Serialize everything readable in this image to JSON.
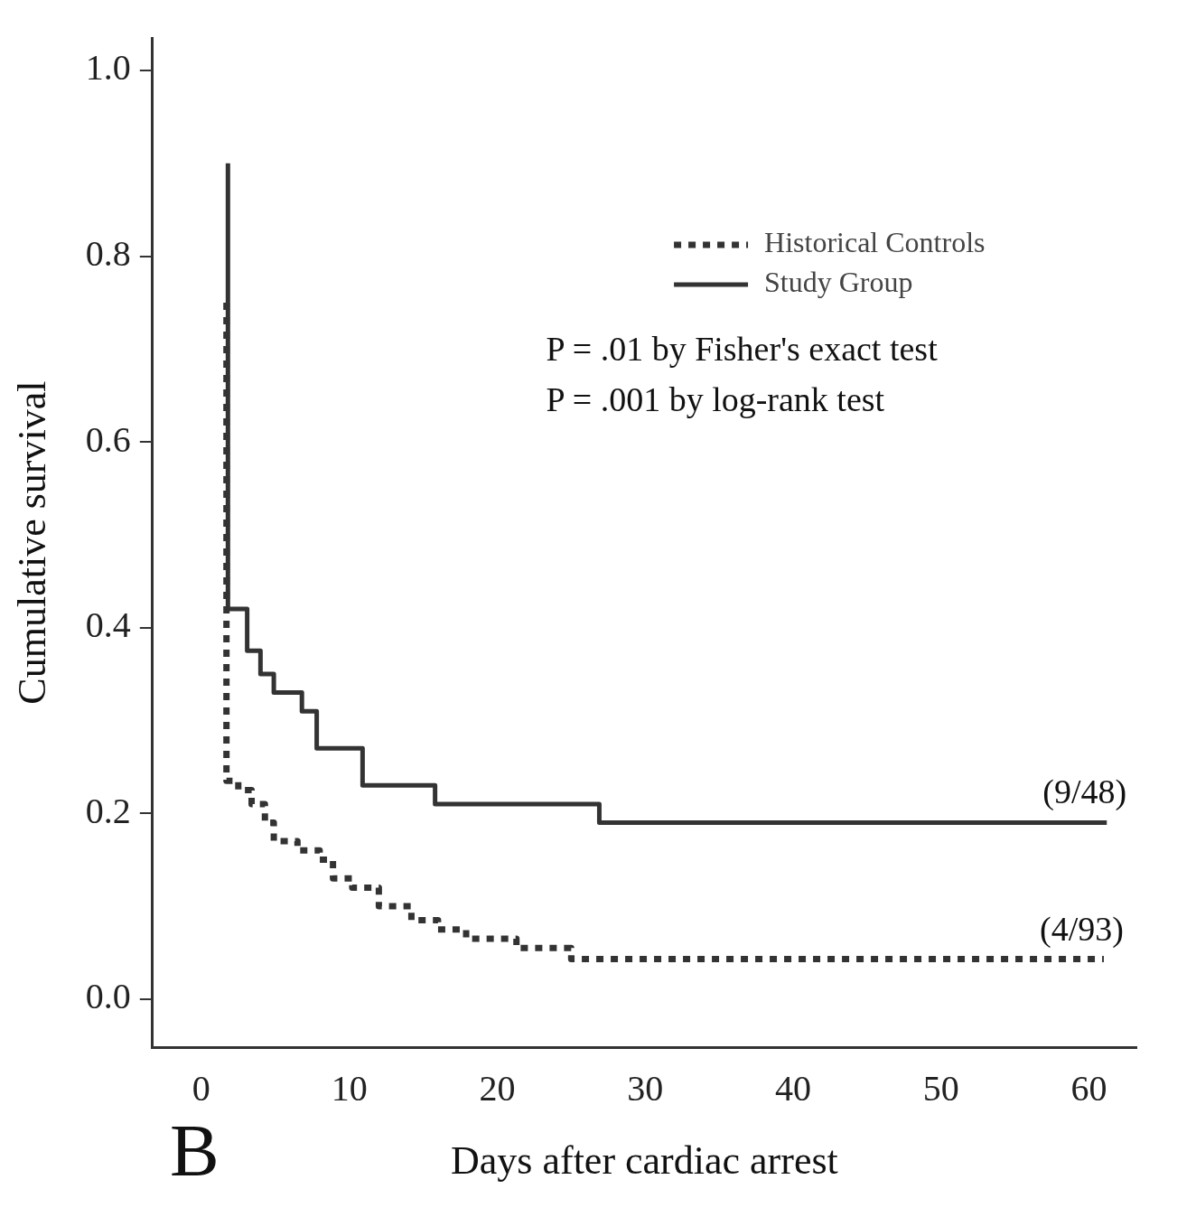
{
  "chart_data": {
    "type": "step",
    "title": "B",
    "xlabel": "Days after cardiac arrest",
    "ylabel": "Cumulative survival",
    "xlim": [
      -3.3,
      63.2
    ],
    "xticks": [
      0,
      10,
      20,
      30,
      40,
      50,
      60
    ],
    "ylim": [
      -0.052,
      1.035
    ],
    "yticks": [
      {
        "value": 0,
        "label": "0.0"
      },
      0.2,
      0.4,
      0.6,
      0.8,
      {
        "value": 1,
        "label": "1.0"
      }
    ],
    "grid": false,
    "legend": "top right",
    "marker": "none",
    "series": [
      {
        "name": "Historical Controls",
        "color": "#333333",
        "line_style": "dotted",
        "x": [
          1.7,
          1.7,
          2.5,
          3.4,
          4.3,
          4.9,
          6.5,
          8,
          8.9,
          10.2,
          12,
          14.2,
          16,
          17.9,
          21.3,
          25,
          61
        ],
        "values": [
          0.75,
          0.235,
          0.225,
          0.21,
          0.19,
          0.17,
          0.16,
          0.15,
          0.13,
          0.12,
          0.1,
          0.085,
          0.075,
          0.065,
          0.055,
          0.043,
          0.043
        ]
      },
      {
        "name": "Study Group",
        "color": "#333333",
        "line_style": "solid",
        "x": [
          1.8,
          1.8,
          3.1,
          4,
          4.9,
          6.8,
          7.8,
          10.9,
          15.8,
          26.9,
          61.2
        ],
        "values": [
          0.9,
          0.42,
          0.375,
          0.35,
          0.33,
          0.31,
          0.27,
          0.23,
          0.21,
          0.19,
          0.19
        ]
      }
    ],
    "annotations": [
      "P = .01 by Fisher's exact test",
      "P = .001 by log-rank test",
      {
        "text": "(9/48)",
        "x": 61.2,
        "y": 0.19
      },
      {
        "text": "(4/93)",
        "x": 61,
        "y": 0.043
      }
    ]
  }
}
